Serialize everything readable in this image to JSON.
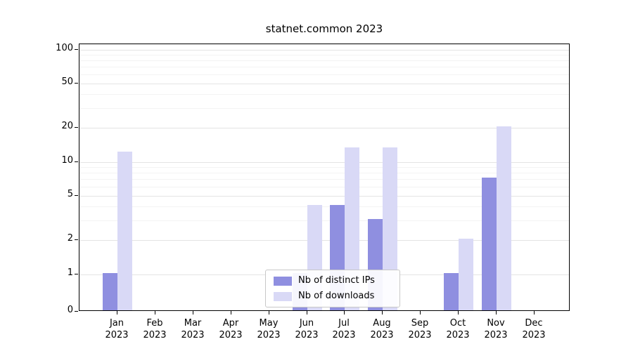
{
  "chart_data": {
    "type": "bar",
    "title": "statnet.common 2023",
    "categories": [
      "Jan",
      "Feb",
      "Mar",
      "Apr",
      "May",
      "Jun",
      "Jul",
      "Aug",
      "Sep",
      "Oct",
      "Nov",
      "Dec"
    ],
    "year": "2023",
    "series": [
      {
        "name": "Nb of distinct IPs",
        "color": "#8f8fe0",
        "values": [
          1,
          0,
          0,
          0,
          0,
          1,
          4,
          3,
          0,
          1,
          7,
          0
        ]
      },
      {
        "name": "Nb of downloads",
        "color": "#d9d9f6",
        "values": [
          12,
          0,
          0,
          0,
          0,
          4,
          13,
          13,
          0,
          2,
          20,
          0
        ]
      }
    ],
    "yticks": [
      0,
      1,
      2,
      5,
      10,
      20,
      50,
      100
    ],
    "minor_yticks": [
      3,
      4,
      6,
      7,
      8,
      9,
      30,
      40,
      60,
      70,
      80,
      90
    ],
    "scale": "log",
    "ylim": [
      0,
      100
    ],
    "xlabel": "",
    "ylabel": "",
    "grid": "horizontal",
    "legend_position": "lower center"
  }
}
